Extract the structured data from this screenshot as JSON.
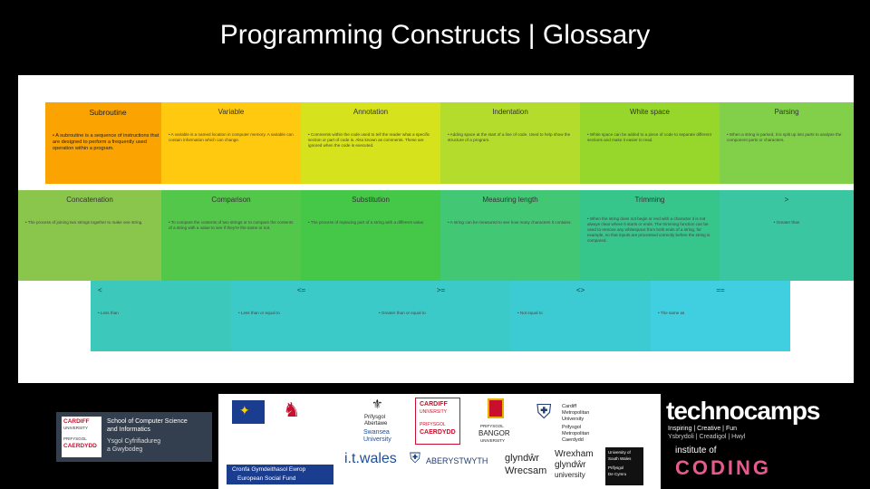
{
  "title": "Programming Constructs | Glossary",
  "glossary": [
    {
      "term": "Subroutine",
      "color": "#fba300",
      "definition": "• A subroutine is a sequence of instructions that are designed to perform a frequently used operation within a program."
    },
    {
      "term": "Variable",
      "color": "#fec90f",
      "definition": "• A variable is a named location in computer memory. A variable can contain information which can change."
    },
    {
      "term": "Annotation",
      "color": "#d6e21b",
      "definition": "• Comments within the code used to tell the reader what a specific section or part of code is. Also known as comments. These are ignored when the code is executed."
    },
    {
      "term": "Indentation",
      "color": "#b3dc2c",
      "definition": "• Adding space at the start of a line of code. Used to help show the structure of a program."
    },
    {
      "term": "White space",
      "color": "#97d72c",
      "definition": "• White space can be added to a piece of code to separate different sections and make it easier to read."
    },
    {
      "term": "Parsing",
      "color": "#82cf4a",
      "definition": "• When a string is parsed, it is split up into parts to analyse the component parts or characters."
    },
    {
      "term": "Concatenation",
      "color": "#8ac64b",
      "definition": "• The process of joining two strings together to make one string."
    },
    {
      "term": "Comparison",
      "color": "#53c74a",
      "definition": "• To compare the contents of two strings or to compare the contents of a string with a value to see if they're the same or not."
    },
    {
      "term": "Substitution",
      "color": "#45c848",
      "definition": "• The process of replacing part of a string with a different value."
    },
    {
      "term": "Measuring length",
      "color": "#42c874",
      "definition": "• A string can be measured to see how many characters it contains."
    },
    {
      "term": "Trimming",
      "color": "#36c58b",
      "definition": "• When the string does not begin or end with a character it is not always clear where it starts or ends. The trimming function can be used to remove any whitespace from both ends of a string, for example, so that inputs are processed correctly before the string is compared."
    },
    {
      "term": ">",
      "color": "#39c6a1",
      "definition": "• Greater than"
    },
    {
      "term": "<",
      "color": "#3cc9bb",
      "definition": "• Less than"
    },
    {
      "term": "<=",
      "color": "#3bcac7",
      "definition": "• Less than or equal to"
    },
    {
      "term": ">=",
      "color": "#3ccac8",
      "definition": "• Greater than or equal to"
    },
    {
      "term": "<>",
      "color": "#3ccbd2",
      "definition": "• Not equal to"
    },
    {
      "term": "==",
      "color": "#3fcfe0",
      "definition": "• The same as"
    }
  ],
  "logos": {
    "cardiff_cs": {
      "l1": "CARDIFF",
      "l2": "UNIVERSITY",
      "l3": "PRIFYSGOL",
      "l4": "CAERDYDD",
      "name1": "School of Computer Science",
      "name2": "and Informatics",
      "name3": "Ysgol Cyfrifiadureg",
      "name4": "a Gwybodeg"
    },
    "esf": {
      "w1": "Cronfa Gymdeithasol Ewrop",
      "w2": "European Social Fund"
    },
    "itwales": "i.t.wales",
    "swansea": {
      "l1": "Prifysgol",
      "l2": "Abertawe",
      "l3": "Swansea",
      "l4": "University"
    },
    "aberystwyth": "ABERYSTWYTH",
    "cardiff2": {
      "l1": "CARDIFF",
      "l2": "UNIVERSITY",
      "l3": "PRIFYSGOL",
      "l4": "CAERDYDD"
    },
    "bangor": {
      "l1": "PRIFYSGOL",
      "l2": "BANGOR",
      "l3": "UNIVERSITY"
    },
    "glyndwr1": {
      "l1": "glyndŵr",
      "l2": "Wrecsam"
    },
    "cardiff_met": {
      "l1": "Cardiff",
      "l2": "Metropolitan",
      "l3": "University",
      "l4": "Prifysgol",
      "l5": "Metropolitan",
      "l6": "Caerdydd"
    },
    "wrexham": {
      "l1": "Wrexham",
      "l2": "glyndŵr",
      "l3": "university"
    },
    "south_wales": {
      "l1": "University of",
      "l2": "South Wales",
      "l3": "Prifysgol",
      "l4": "De Cymru"
    },
    "technocamps": {
      "brand": "technocamps",
      "tagline": "Inspiring | Creative | Fun",
      "tagline2": "Ysbrydoli | Creadigol | Hwyl"
    },
    "coding": {
      "l1": "institute of",
      "l2": "CODING"
    }
  }
}
